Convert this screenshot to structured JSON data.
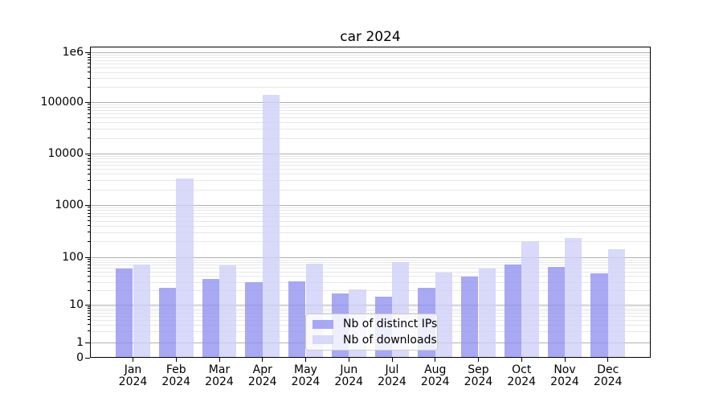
{
  "chart_data": {
    "type": "bar",
    "title": "car 2024",
    "year": "2024",
    "categories": [
      "Jan",
      "Feb",
      "Mar",
      "Apr",
      "May",
      "Jun",
      "Jul",
      "Aug",
      "Sep",
      "Oct",
      "Nov",
      "Dec"
    ],
    "series": [
      {
        "name": "Nb of distinct IPs",
        "color": "#9292f0",
        "alpha": 0.8,
        "values": [
          58,
          23,
          35,
          30,
          31,
          17,
          15,
          23,
          39,
          70,
          62,
          45
        ]
      },
      {
        "name": "Nb of downloads",
        "color": "#cecef7",
        "alpha": 0.78,
        "values": [
          71,
          3300,
          68,
          140000,
          72,
          21,
          78,
          47,
          57,
          203,
          235,
          145
        ]
      }
    ],
    "y_scale": "symlog",
    "ylim": [
      0,
      1000000
    ],
    "y_ticks": [
      {
        "value": 0,
        "label": "0"
      },
      {
        "value": 1,
        "label": "1"
      },
      {
        "value": 10,
        "label": "10"
      },
      {
        "value": 100,
        "label": "100"
      },
      {
        "value": 1000,
        "label": "1000"
      },
      {
        "value": 10000,
        "label": "10000"
      },
      {
        "value": 100000,
        "label": "100000"
      },
      {
        "value": 1000000,
        "label": "1e6"
      }
    ],
    "grid": "both",
    "legend_position": "lower center"
  }
}
